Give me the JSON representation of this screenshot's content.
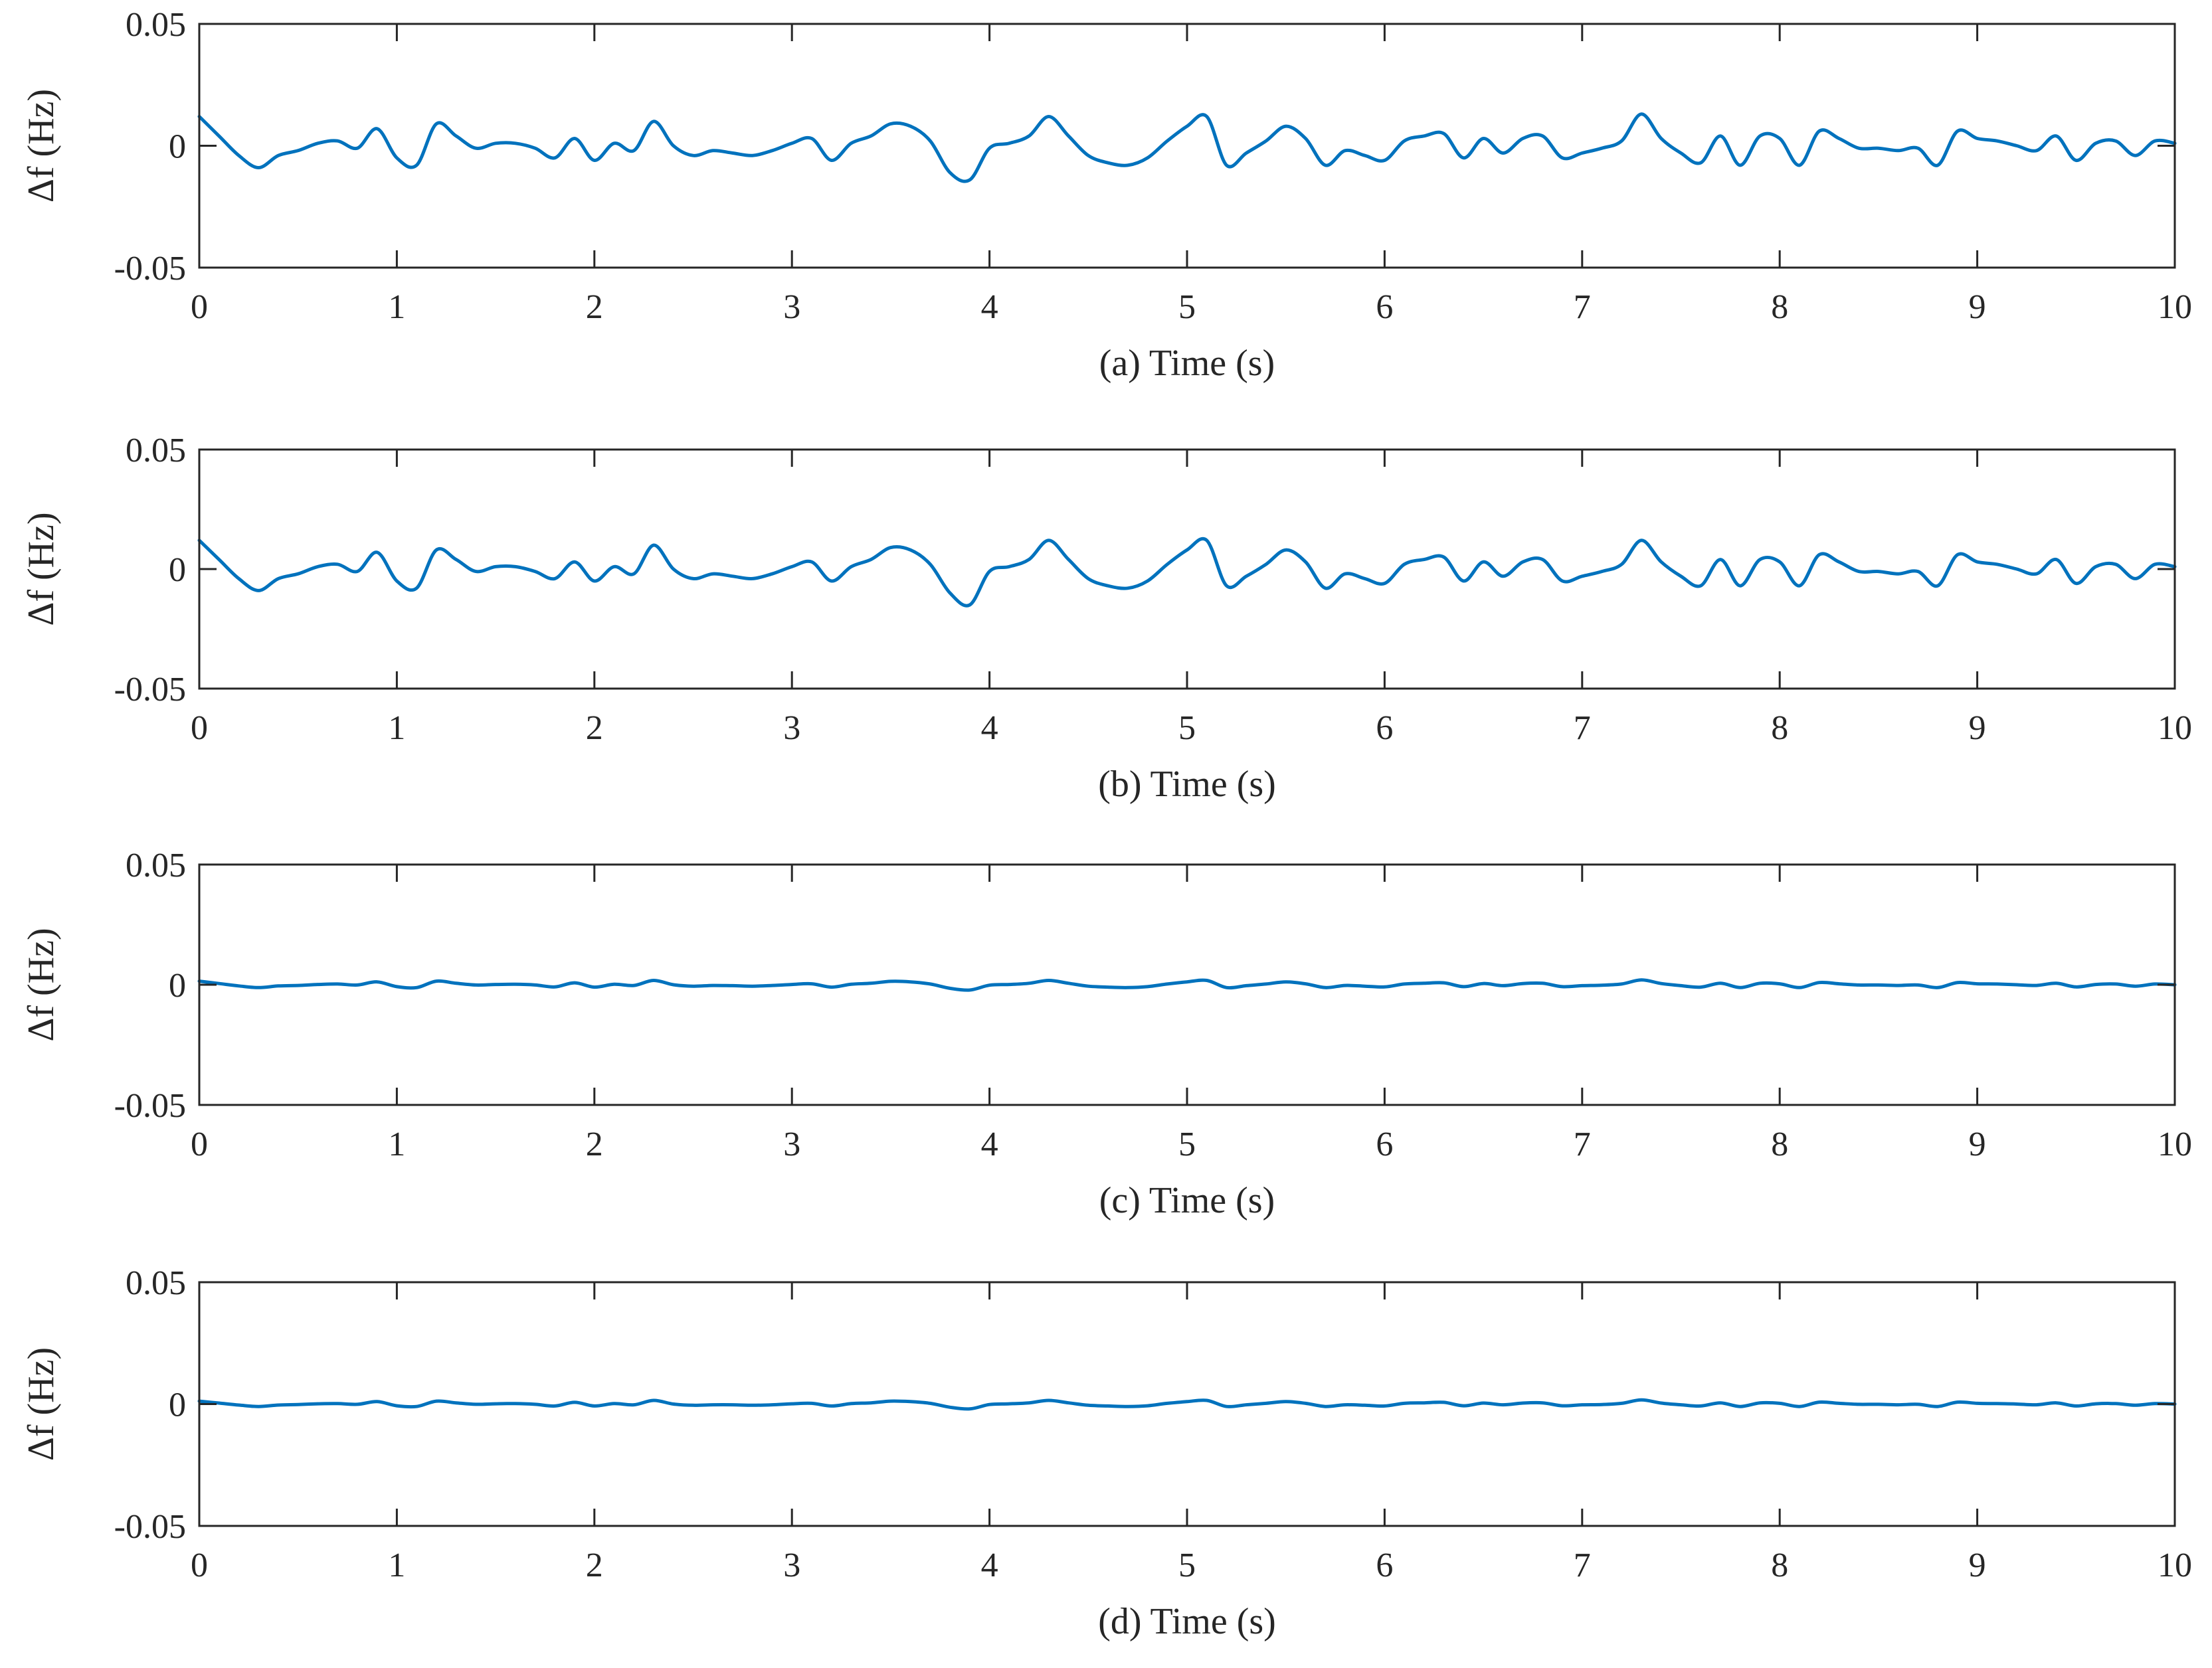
{
  "chart_data": [
    {
      "type": "line",
      "xlabel": "(a) Time (s)",
      "ylabel": "Δf (Hz)",
      "xlim": [
        0,
        10
      ],
      "ylim": [
        -0.05,
        0.05
      ],
      "xticks": [
        "0",
        "1",
        "2",
        "3",
        "4",
        "5",
        "6",
        "7",
        "8",
        "9",
        "10"
      ],
      "yticks": [
        "0.05",
        "0",
        "-0.05"
      ],
      "grid": false,
      "series": [
        {
          "color": "#0072BD",
          "x": [
            0,
            0.1,
            0.2,
            0.3,
            0.4,
            0.5,
            0.6,
            0.7,
            0.8,
            0.9,
            1.0,
            1.1,
            1.2,
            1.3,
            1.4,
            1.5,
            1.6,
            1.7,
            1.8,
            1.9,
            2.0,
            2.1,
            2.2,
            2.3,
            2.4,
            2.5,
            2.6,
            2.7,
            2.8,
            2.9,
            3.0,
            3.1,
            3.2,
            3.3,
            3.4,
            3.5,
            3.6,
            3.7,
            3.8,
            3.9,
            4.0,
            4.1,
            4.2,
            4.3,
            4.4,
            4.5,
            4.6,
            4.7,
            4.8,
            4.9,
            5.0,
            5.1,
            5.2,
            5.3,
            5.4,
            5.5,
            5.6,
            5.7,
            5.8,
            5.9,
            6.0,
            6.1,
            6.2,
            6.3,
            6.4,
            6.5,
            6.6,
            6.7,
            6.8,
            6.9,
            7.0,
            7.1,
            7.2,
            7.3,
            7.4,
            7.5,
            7.6,
            7.7,
            7.8,
            7.9,
            8.0,
            8.1,
            8.2,
            8.3,
            8.4,
            8.5,
            8.6,
            8.7,
            8.8,
            8.9,
            9.0,
            9.1,
            9.2,
            9.3,
            9.4,
            9.5,
            9.6,
            9.7,
            9.8,
            9.9,
            10.0
          ],
          "y": [
            0.012,
            0.004,
            -0.004,
            -0.009,
            -0.004,
            -0.002,
            0.001,
            0.002,
            -0.001,
            0.007,
            -0.005,
            -0.008,
            0.009,
            0.004,
            -0.001,
            0.001,
            0.001,
            -0.001,
            -0.005,
            0.003,
            -0.006,
            0.001,
            -0.002,
            0.01,
            0.0,
            -0.004,
            -0.002,
            -0.003,
            -0.004,
            -0.002,
            0.001,
            0.003,
            -0.006,
            0.001,
            0.004,
            0.009,
            0.008,
            0.002,
            -0.011,
            -0.014,
            -0.001,
            0.001,
            0.004,
            0.012,
            0.004,
            -0.004,
            -0.007,
            -0.008,
            -0.005,
            0.002,
            0.008,
            0.012,
            -0.008,
            -0.003,
            0.002,
            0.008,
            0.003,
            -0.008,
            -0.002,
            -0.004,
            -0.006,
            0.002,
            0.004,
            0.005,
            -0.005,
            0.003,
            -0.003,
            0.003,
            0.004,
            -0.005,
            -0.003,
            -0.001,
            0.002,
            0.013,
            0.003,
            -0.003,
            -0.007,
            0.004,
            -0.008,
            0.004,
            0.003,
            -0.008,
            0.006,
            0.003,
            -0.001,
            -0.001,
            -0.002,
            -0.001,
            -0.008,
            0.006,
            0.003,
            0.002,
            0.0,
            -0.002,
            0.004,
            -0.006,
            0.001,
            0.002,
            -0.004,
            0.002,
            0.001
          ]
        }
      ]
    },
    {
      "type": "line",
      "xlabel": "(b) Time (s)",
      "ylabel": "Δf (Hz)",
      "xlim": [
        0,
        10
      ],
      "ylim": [
        -0.05,
        0.05
      ],
      "xticks": [
        "0",
        "1",
        "2",
        "3",
        "4",
        "5",
        "6",
        "7",
        "8",
        "9",
        "10"
      ],
      "yticks": [
        "0.05",
        "0",
        "-0.05"
      ],
      "grid": false,
      "series": [
        {
          "color": "#0072BD",
          "x": [
            0,
            0.1,
            0.2,
            0.3,
            0.4,
            0.5,
            0.6,
            0.7,
            0.8,
            0.9,
            1.0,
            1.1,
            1.2,
            1.3,
            1.4,
            1.5,
            1.6,
            1.7,
            1.8,
            1.9,
            2.0,
            2.1,
            2.2,
            2.3,
            2.4,
            2.5,
            2.6,
            2.7,
            2.8,
            2.9,
            3.0,
            3.1,
            3.2,
            3.3,
            3.4,
            3.5,
            3.6,
            3.7,
            3.8,
            3.9,
            4.0,
            4.1,
            4.2,
            4.3,
            4.4,
            4.5,
            4.6,
            4.7,
            4.8,
            4.9,
            5.0,
            5.1,
            5.2,
            5.3,
            5.4,
            5.5,
            5.6,
            5.7,
            5.8,
            5.9,
            6.0,
            6.1,
            6.2,
            6.3,
            6.4,
            6.5,
            6.6,
            6.7,
            6.8,
            6.9,
            7.0,
            7.1,
            7.2,
            7.3,
            7.4,
            7.5,
            7.6,
            7.7,
            7.8,
            7.9,
            8.0,
            8.1,
            8.2,
            8.3,
            8.4,
            8.5,
            8.6,
            8.7,
            8.8,
            8.9,
            9.0,
            9.1,
            9.2,
            9.3,
            9.4,
            9.5,
            9.6,
            9.7,
            9.8,
            9.9,
            10.0
          ],
          "y": [
            0.012,
            0.004,
            -0.004,
            -0.009,
            -0.004,
            -0.002,
            0.001,
            0.002,
            -0.001,
            0.007,
            -0.005,
            -0.008,
            0.008,
            0.004,
            -0.001,
            0.001,
            0.001,
            -0.001,
            -0.004,
            0.003,
            -0.005,
            0.001,
            -0.002,
            0.01,
            0.0,
            -0.004,
            -0.002,
            -0.003,
            -0.004,
            -0.002,
            0.001,
            0.003,
            -0.005,
            0.001,
            0.004,
            0.009,
            0.008,
            0.002,
            -0.01,
            -0.015,
            -0.001,
            0.001,
            0.004,
            0.012,
            0.004,
            -0.004,
            -0.007,
            -0.008,
            -0.005,
            0.002,
            0.008,
            0.012,
            -0.007,
            -0.003,
            0.002,
            0.008,
            0.003,
            -0.008,
            -0.002,
            -0.004,
            -0.006,
            0.002,
            0.004,
            0.005,
            -0.005,
            0.003,
            -0.003,
            0.003,
            0.004,
            -0.005,
            -0.003,
            -0.001,
            0.002,
            0.012,
            0.003,
            -0.003,
            -0.007,
            0.004,
            -0.007,
            0.004,
            0.003,
            -0.007,
            0.006,
            0.003,
            -0.001,
            -0.001,
            -0.002,
            -0.001,
            -0.007,
            0.006,
            0.003,
            0.002,
            0.0,
            -0.002,
            0.004,
            -0.006,
            0.001,
            0.002,
            -0.004,
            0.002,
            0.001
          ]
        }
      ]
    },
    {
      "type": "line",
      "xlabel": "(c) Time (s)",
      "ylabel": "Δf (Hz)",
      "xlim": [
        0,
        10
      ],
      "ylim": [
        -0.05,
        0.05
      ],
      "xticks": [
        "0",
        "1",
        "2",
        "3",
        "4",
        "5",
        "6",
        "7",
        "8",
        "9",
        "10"
      ],
      "yticks": [
        "0.05",
        "0",
        "-0.05"
      ],
      "grid": false,
      "series": [
        {
          "color": "#0072BD",
          "x": [
            0,
            0.1,
            0.2,
            0.3,
            0.4,
            0.5,
            0.6,
            0.7,
            0.8,
            0.9,
            1.0,
            1.1,
            1.2,
            1.3,
            1.4,
            1.5,
            1.6,
            1.7,
            1.8,
            1.9,
            2.0,
            2.1,
            2.2,
            2.3,
            2.4,
            2.5,
            2.6,
            2.7,
            2.8,
            2.9,
            3.0,
            3.1,
            3.2,
            3.3,
            3.4,
            3.5,
            3.6,
            3.7,
            3.8,
            3.9,
            4.0,
            4.1,
            4.2,
            4.3,
            4.4,
            4.5,
            4.6,
            4.7,
            4.8,
            4.9,
            5.0,
            5.1,
            5.2,
            5.3,
            5.4,
            5.5,
            5.6,
            5.7,
            5.8,
            5.9,
            6.0,
            6.1,
            6.2,
            6.3,
            6.4,
            6.5,
            6.6,
            6.7,
            6.8,
            6.9,
            7.0,
            7.1,
            7.2,
            7.3,
            7.4,
            7.5,
            7.6,
            7.7,
            7.8,
            7.9,
            8.0,
            8.1,
            8.2,
            8.3,
            8.4,
            8.5,
            8.6,
            8.7,
            8.8,
            8.9,
            9.0,
            9.1,
            9.2,
            9.3,
            9.4,
            9.5,
            9.6,
            9.7,
            9.8,
            9.9,
            10.0
          ],
          "y": [
            0.0015,
            0.0005,
            -0.0005,
            -0.0012,
            -0.0005,
            -0.0003,
            0.0001,
            0.0003,
            -0.0001,
            0.0012,
            -0.0008,
            -0.0012,
            0.0015,
            0.0006,
            -0.0001,
            0.0001,
            0.0002,
            -0.0001,
            -0.0009,
            0.0008,
            -0.001,
            0.0002,
            -0.0003,
            0.0018,
            0.0,
            -0.0006,
            -0.0003,
            -0.0004,
            -0.0006,
            -0.0003,
            0.0001,
            0.0004,
            -0.001,
            0.0002,
            0.0006,
            0.0014,
            0.0012,
            0.0003,
            -0.0015,
            -0.0022,
            -0.0002,
            0.0001,
            0.0006,
            0.0018,
            0.0006,
            -0.0006,
            -0.001,
            -0.0012,
            -0.0008,
            0.0003,
            0.0012,
            0.0018,
            -0.0012,
            -0.0004,
            0.0003,
            0.0012,
            0.0004,
            -0.0012,
            -0.0003,
            -0.0006,
            -0.0009,
            0.0003,
            0.0006,
            0.0008,
            -0.0008,
            0.0005,
            -0.0004,
            0.0005,
            0.0006,
            -0.0008,
            -0.0004,
            -0.0002,
            0.0003,
            0.002,
            0.0005,
            -0.0004,
            -0.001,
            0.0006,
            -0.0012,
            0.0006,
            0.0004,
            -0.0012,
            0.0009,
            0.0004,
            -0.0001,
            -0.0001,
            -0.0003,
            -0.0001,
            -0.0012,
            0.0009,
            0.0004,
            0.0003,
            0.0,
            -0.0003,
            0.0006,
            -0.0009,
            0.0001,
            0.0003,
            -0.0006,
            0.0003,
            0.0
          ]
        }
      ]
    },
    {
      "type": "line",
      "xlabel": "(d) Time (s)",
      "ylabel": "Δf (Hz)",
      "xlim": [
        0,
        10
      ],
      "ylim": [
        -0.05,
        0.05
      ],
      "xticks": [
        "0",
        "1",
        "2",
        "3",
        "4",
        "5",
        "6",
        "7",
        "8",
        "9",
        "10"
      ],
      "yticks": [
        "0.05",
        "0",
        "-0.05"
      ],
      "grid": false,
      "series": [
        {
          "color": "#0072BD",
          "x": [
            0,
            0.1,
            0.2,
            0.3,
            0.4,
            0.5,
            0.6,
            0.7,
            0.8,
            0.9,
            1.0,
            1.1,
            1.2,
            1.3,
            1.4,
            1.5,
            1.6,
            1.7,
            1.8,
            1.9,
            2.0,
            2.1,
            2.2,
            2.3,
            2.4,
            2.5,
            2.6,
            2.7,
            2.8,
            2.9,
            3.0,
            3.1,
            3.2,
            3.3,
            3.4,
            3.5,
            3.6,
            3.7,
            3.8,
            3.9,
            4.0,
            4.1,
            4.2,
            4.3,
            4.4,
            4.5,
            4.6,
            4.7,
            4.8,
            4.9,
            5.0,
            5.1,
            5.2,
            5.3,
            5.4,
            5.5,
            5.6,
            5.7,
            5.8,
            5.9,
            6.0,
            6.1,
            6.2,
            6.3,
            6.4,
            6.5,
            6.6,
            6.7,
            6.8,
            6.9,
            7.0,
            7.1,
            7.2,
            7.3,
            7.4,
            7.5,
            7.6,
            7.7,
            7.8,
            7.9,
            8.0,
            8.1,
            8.2,
            8.3,
            8.4,
            8.5,
            8.6,
            8.7,
            8.8,
            8.9,
            9.0,
            9.1,
            9.2,
            9.3,
            9.4,
            9.5,
            9.6,
            9.7,
            9.8,
            9.9,
            10.0
          ],
          "y": [
            0.0012,
            0.0004,
            -0.0004,
            -0.001,
            -0.0004,
            -0.0002,
            0.0001,
            0.0002,
            -0.0001,
            0.001,
            -0.0007,
            -0.001,
            0.0012,
            0.0005,
            -0.0001,
            0.0001,
            0.0002,
            -0.0001,
            -0.0008,
            0.0007,
            -0.0008,
            0.0002,
            -0.0003,
            0.0015,
            0.0,
            -0.0005,
            -0.0003,
            -0.0003,
            -0.0005,
            -0.0003,
            0.0001,
            0.0003,
            -0.0008,
            0.0002,
            0.0005,
            0.0012,
            0.001,
            0.0003,
            -0.0013,
            -0.002,
            -0.0002,
            0.0001,
            0.0005,
            0.0015,
            0.0005,
            -0.0005,
            -0.0008,
            -0.001,
            -0.0007,
            0.0003,
            0.001,
            0.0015,
            -0.001,
            -0.0003,
            0.0003,
            0.001,
            0.0003,
            -0.001,
            -0.0003,
            -0.0005,
            -0.0008,
            0.0003,
            0.0005,
            0.0007,
            -0.0007,
            0.0004,
            -0.0003,
            0.0004,
            0.0005,
            -0.0007,
            -0.0003,
            -0.0002,
            0.0003,
            0.0017,
            0.0004,
            -0.0003,
            -0.0008,
            0.0005,
            -0.001,
            0.0005,
            0.0003,
            -0.001,
            0.0008,
            0.0003,
            -0.0001,
            -0.0001,
            -0.0003,
            -0.0001,
            -0.001,
            0.0008,
            0.0003,
            0.0002,
            0.0,
            -0.0003,
            0.0005,
            -0.0008,
            0.0001,
            0.0002,
            -0.0005,
            0.0002,
            0.0
          ]
        }
      ]
    }
  ]
}
